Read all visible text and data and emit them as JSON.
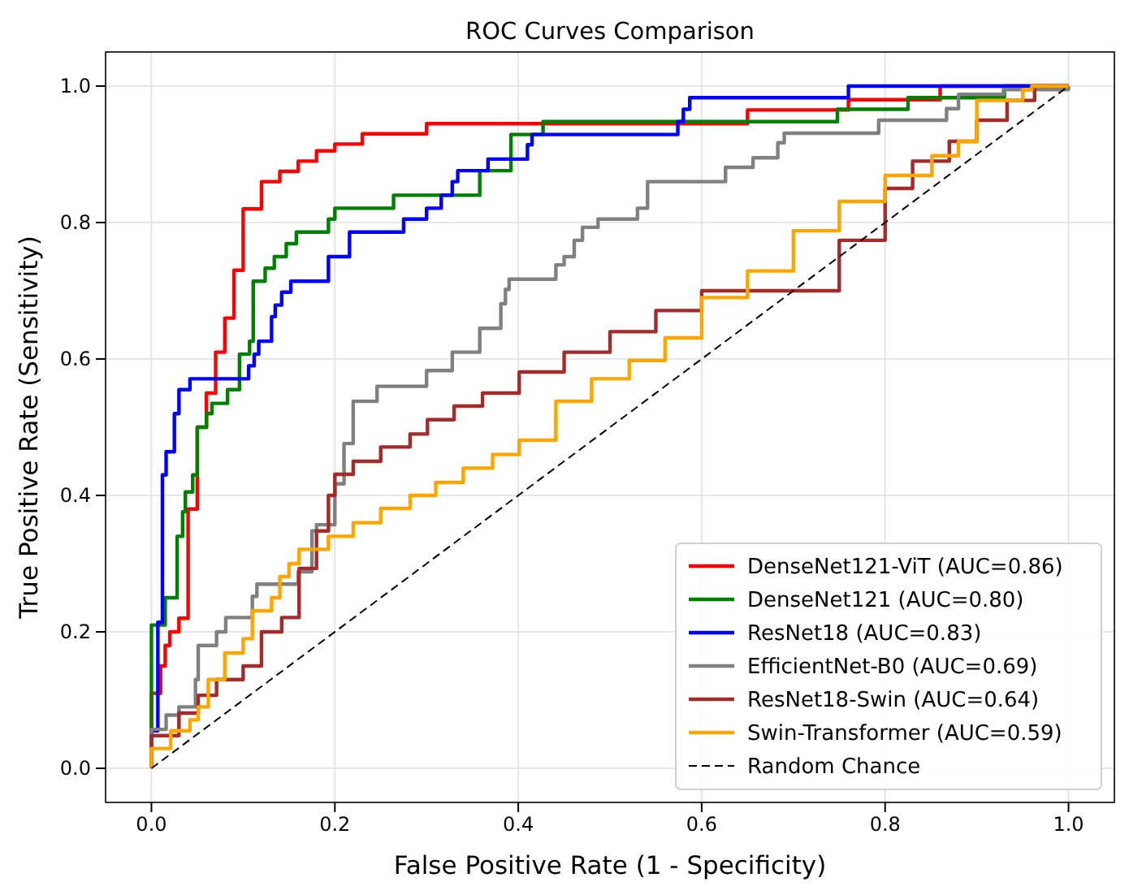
{
  "chart_data": {
    "type": "step",
    "title": "ROC Curves Comparison",
    "xlabel": "False Positive Rate (1 - Specificity)",
    "ylabel": "True Positive Rate (Sensitivity)",
    "xlim": [
      -0.05,
      1.05
    ],
    "ylim": [
      -0.05,
      1.05
    ],
    "xticks": [
      {
        "value": 0,
        "label": "0.0"
      },
      {
        "value": 0.2,
        "label": "0.2"
      },
      {
        "value": 0.4,
        "label": "0.4"
      },
      {
        "value": 0.6,
        "label": "0.6"
      },
      {
        "value": 0.8,
        "label": "0.8"
      },
      {
        "value": 1,
        "label": "1.0"
      }
    ],
    "yticks": [
      {
        "value": 0,
        "label": "0.0"
      },
      {
        "value": 0.2,
        "label": "0.2"
      },
      {
        "value": 0.4,
        "label": "0.4"
      },
      {
        "value": 0.6,
        "label": "0.6"
      },
      {
        "value": 0.8,
        "label": "0.8"
      },
      {
        "value": 1,
        "label": "1.0"
      }
    ],
    "grid": true,
    "legend": "bottom right",
    "marker": "none",
    "series": [
      {
        "name": "DenseNet121-ViT (AUC=0.86)",
        "color": "#ff0000",
        "x": [
          0,
          0,
          0.01,
          0.015,
          0.02,
          0.03,
          0.04,
          0.05,
          0.06,
          0.07,
          0.08,
          0.09,
          0.1,
          0.12,
          0.14,
          0.16,
          0.18,
          0.2,
          0.23,
          0.3,
          0.65,
          0.76,
          0.86,
          1
        ],
        "values": [
          0,
          0.11,
          0.15,
          0.18,
          0.2,
          0.22,
          0.38,
          0.5,
          0.55,
          0.61,
          0.66,
          0.73,
          0.82,
          0.86,
          0.875,
          0.89,
          0.905,
          0.915,
          0.93,
          0.945,
          0.965,
          0.98,
          1,
          1
        ]
      },
      {
        "name": "DenseNet121 (AUC=0.80)",
        "color": "#008000",
        "x": [
          0,
          0,
          0.015,
          0.028,
          0.034,
          0.037,
          0.045,
          0.05,
          0.06,
          0.066,
          0.083,
          0.096,
          0.107,
          0.111,
          0.124,
          0.134,
          0.147,
          0.158,
          0.193,
          0.2,
          0.264,
          0.358,
          0.392,
          0.427,
          0.748,
          0.825,
          0.93,
          1
        ],
        "values": [
          0,
          0.21,
          0.25,
          0.34,
          0.376,
          0.405,
          0.43,
          0.5,
          0.52,
          0.535,
          0.555,
          0.607,
          0.626,
          0.714,
          0.733,
          0.75,
          0.769,
          0.786,
          0.805,
          0.821,
          0.84,
          0.876,
          0.929,
          0.948,
          0.966,
          0.983,
          1,
          1
        ]
      },
      {
        "name": "ResNet18 (AUC=0.83)",
        "color": "#0000ff",
        "x": [
          0,
          0,
          0.007,
          0.012,
          0.016,
          0.025,
          0.03,
          0.042,
          0.106,
          0.112,
          0.117,
          0.131,
          0.135,
          0.142,
          0.152,
          0.193,
          0.216,
          0.275,
          0.3,
          0.316,
          0.328,
          0.334,
          0.367,
          0.41,
          0.415,
          0.574,
          0.58,
          0.587,
          0.76,
          1
        ],
        "values": [
          0,
          0.055,
          0.214,
          0.43,
          0.464,
          0.52,
          0.555,
          0.571,
          0.59,
          0.607,
          0.626,
          0.662,
          0.679,
          0.698,
          0.714,
          0.75,
          0.786,
          0.805,
          0.821,
          0.84,
          0.86,
          0.876,
          0.893,
          0.914,
          0.929,
          0.948,
          0.966,
          0.983,
          1,
          1
        ]
      },
      {
        "name": "EfficientNet-B0 (AUC=0.69)",
        "color": "#808080",
        "x": [
          0,
          0,
          0.016,
          0.03,
          0.048,
          0.051,
          0.071,
          0.081,
          0.11,
          0.115,
          0.16,
          0.175,
          0.18,
          0.2,
          0.21,
          0.22,
          0.246,
          0.3,
          0.328,
          0.358,
          0.381,
          0.386,
          0.39,
          0.441,
          0.45,
          0.461,
          0.47,
          0.487,
          0.53,
          0.541,
          0.626,
          0.656,
          0.683,
          0.69,
          0.793,
          0.867,
          0.88,
          0.929,
          1
        ],
        "values": [
          0,
          0.057,
          0.078,
          0.09,
          0.13,
          0.18,
          0.2,
          0.221,
          0.252,
          0.27,
          0.288,
          0.348,
          0.357,
          0.417,
          0.476,
          0.538,
          0.56,
          0.583,
          0.61,
          0.645,
          0.681,
          0.702,
          0.717,
          0.738,
          0.75,
          0.774,
          0.793,
          0.805,
          0.821,
          0.86,
          0.881,
          0.895,
          0.917,
          0.931,
          0.95,
          0.967,
          0.988,
          0.995,
          1
        ]
      },
      {
        "name": "ResNet18-Swin (AUC=0.64)",
        "color": "#a52a2a",
        "x": [
          0,
          0,
          0.03,
          0.051,
          0.071,
          0.1,
          0.12,
          0.142,
          0.161,
          0.18,
          0.193,
          0.2,
          0.22,
          0.25,
          0.282,
          0.301,
          0.33,
          0.361,
          0.401,
          0.45,
          0.5,
          0.55,
          0.6,
          0.75,
          0.8,
          0.83,
          0.87,
          0.9,
          0.933,
          0.963,
          1
        ],
        "values": [
          0,
          0.048,
          0.081,
          0.107,
          0.13,
          0.15,
          0.2,
          0.221,
          0.293,
          0.348,
          0.4,
          0.431,
          0.45,
          0.471,
          0.49,
          0.511,
          0.531,
          0.55,
          0.581,
          0.61,
          0.64,
          0.671,
          0.7,
          0.774,
          0.85,
          0.89,
          0.919,
          0.95,
          0.979,
          1,
          1
        ]
      },
      {
        "name": "Swin-Transformer (AUC=0.59)",
        "color": "#ffa500",
        "x": [
          0,
          0,
          0.021,
          0.042,
          0.051,
          0.062,
          0.08,
          0.1,
          0.11,
          0.131,
          0.14,
          0.15,
          0.161,
          0.193,
          0.22,
          0.25,
          0.282,
          0.31,
          0.34,
          0.372,
          0.401,
          0.441,
          0.48,
          0.521,
          0.56,
          0.6,
          0.65,
          0.7,
          0.75,
          0.8,
          0.851,
          0.88,
          0.9,
          0.95,
          0.96,
          1
        ],
        "values": [
          0,
          0.029,
          0.055,
          0.071,
          0.09,
          0.13,
          0.169,
          0.19,
          0.231,
          0.25,
          0.281,
          0.3,
          0.321,
          0.34,
          0.36,
          0.381,
          0.4,
          0.419,
          0.44,
          0.46,
          0.481,
          0.538,
          0.571,
          0.598,
          0.631,
          0.69,
          0.729,
          0.788,
          0.831,
          0.869,
          0.898,
          0.919,
          0.979,
          0.995,
          1,
          1
        ]
      },
      {
        "name": "Random Chance",
        "type": "line",
        "line_style": "dashed",
        "color": "#000000",
        "x": [
          0,
          1
        ],
        "values": [
          0,
          1
        ]
      }
    ]
  }
}
